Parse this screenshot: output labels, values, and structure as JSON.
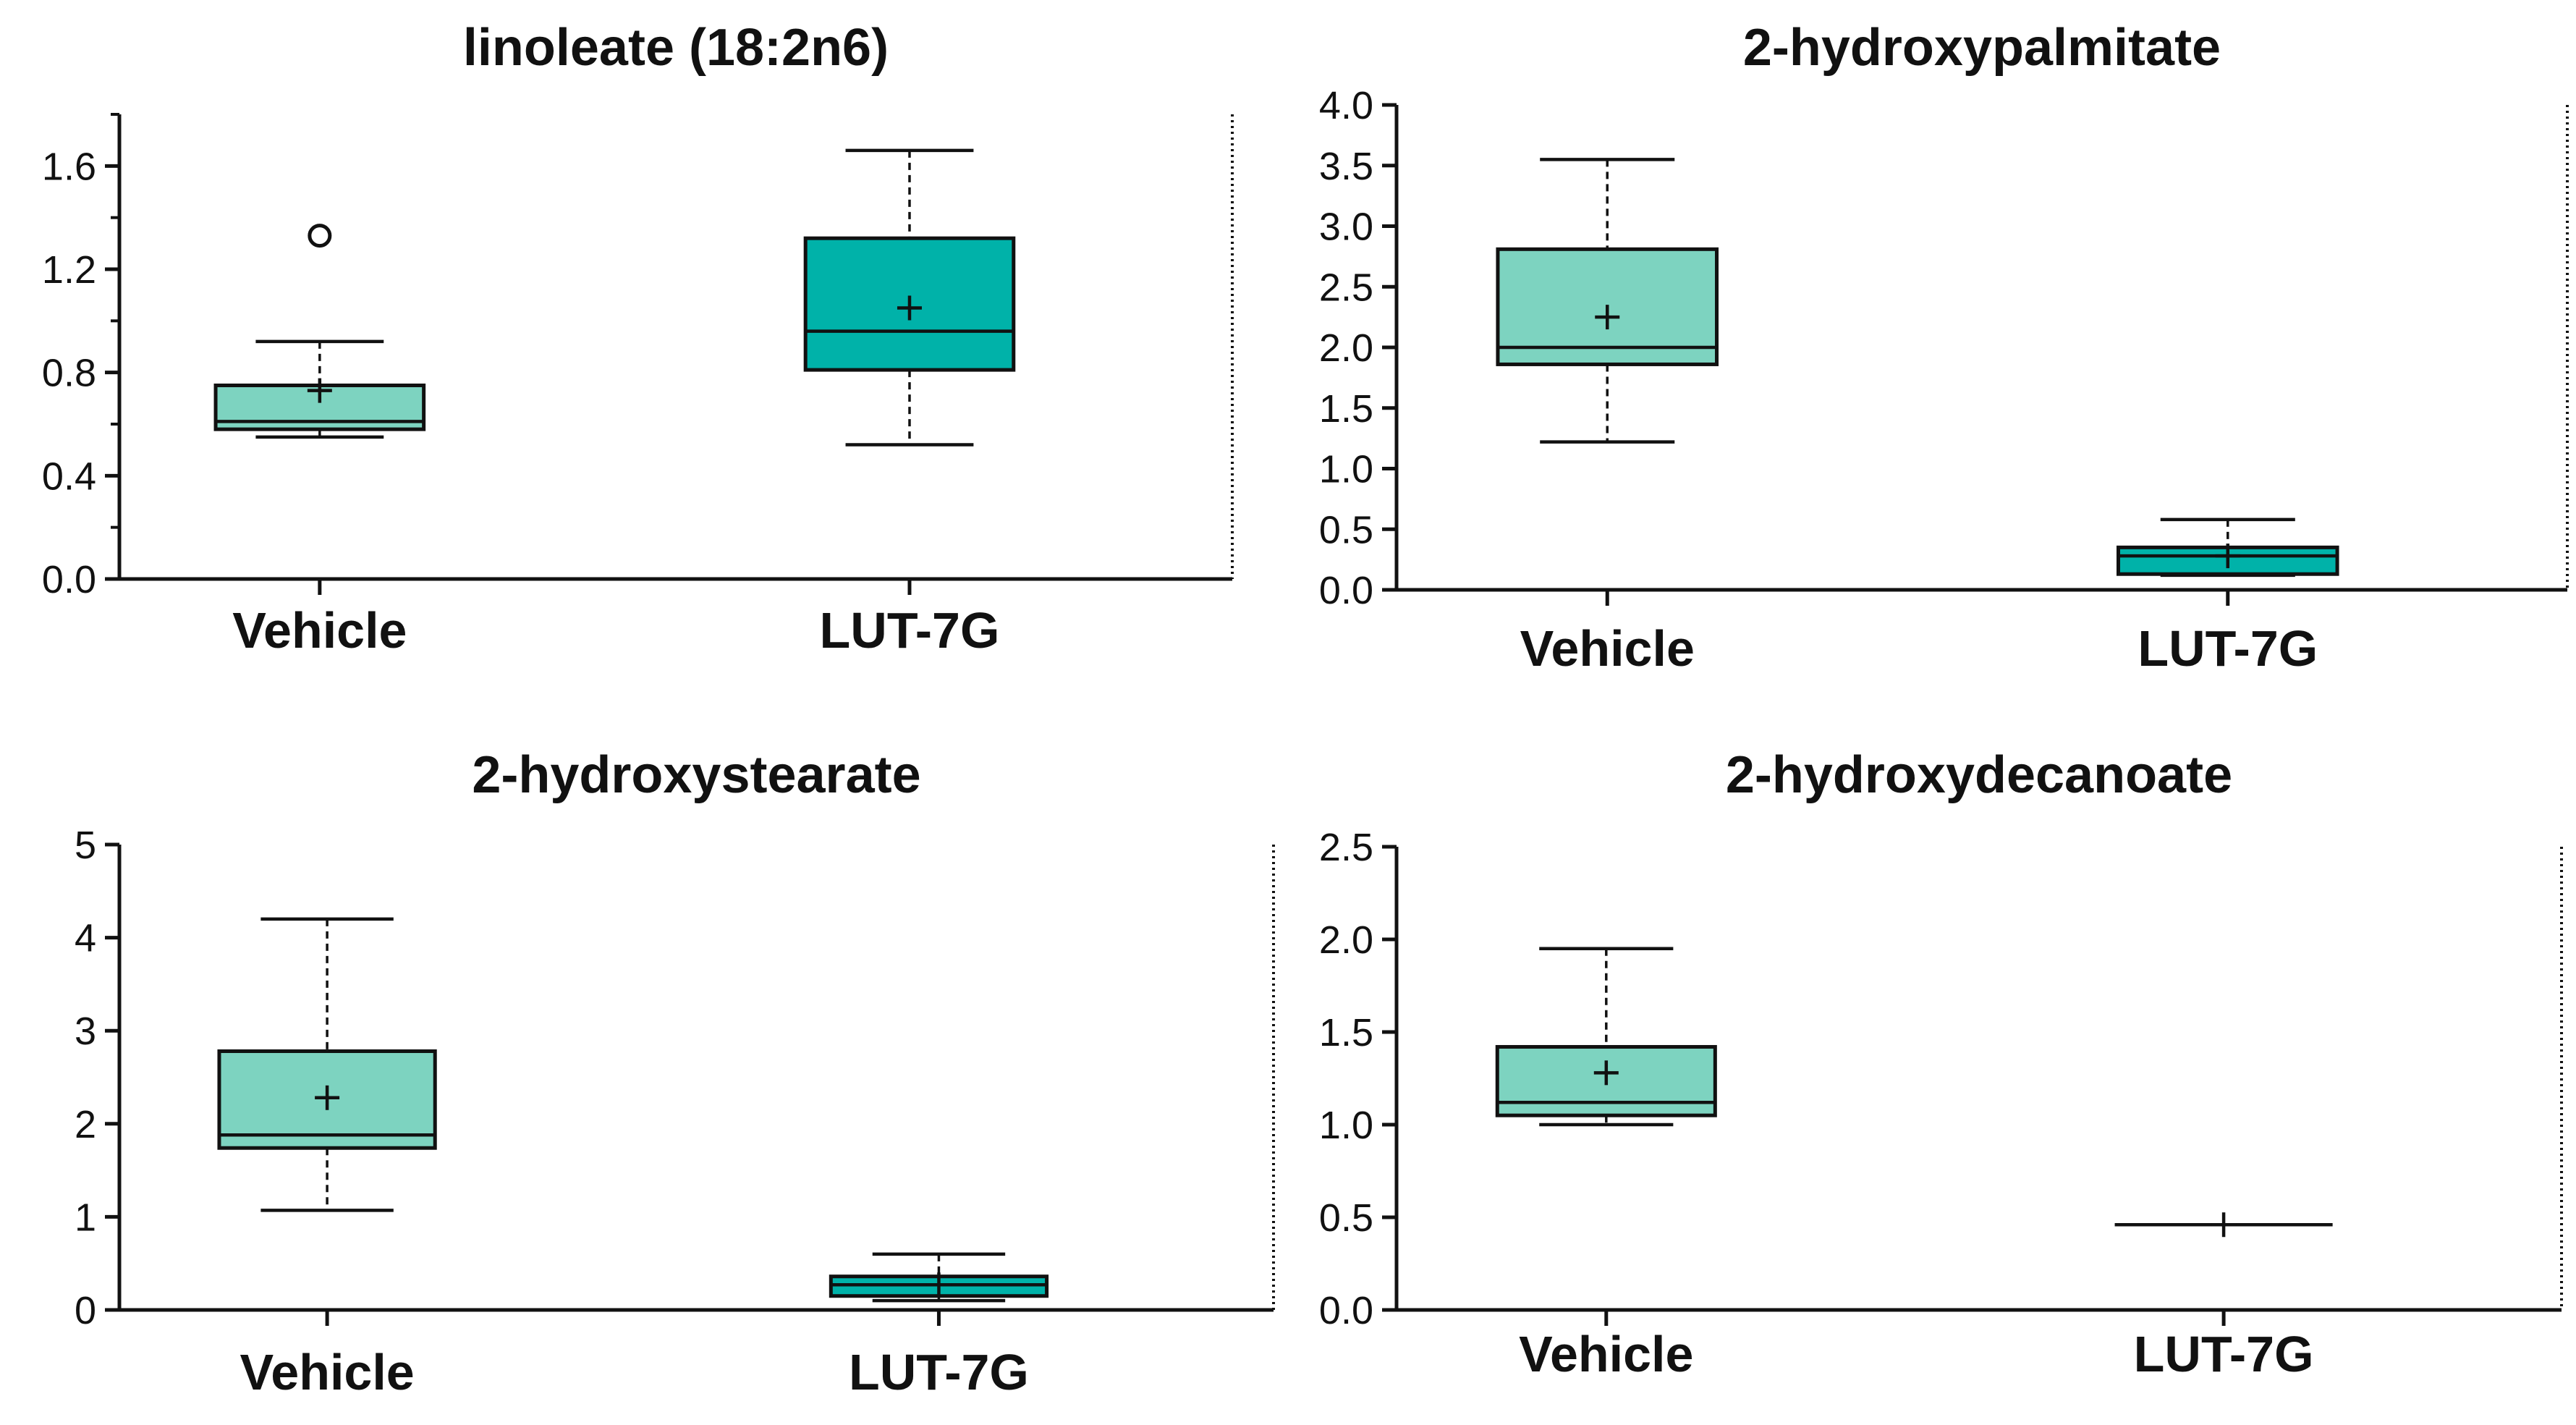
{
  "colors": {
    "vehicle_box": "#7DD3C0",
    "lut7g_box": "#00B2A9",
    "stroke": "#111111"
  },
  "chart_data": [
    {
      "type": "box",
      "title": "linoleate (18:2n6)",
      "categories": [
        "Vehicle",
        "LUT-7G"
      ],
      "ylim": [
        0,
        1.8
      ],
      "yticks": [
        "0.0",
        "0.4",
        "0.8",
        "1.2",
        "1.6"
      ],
      "ytick_values": [
        0,
        0.4,
        0.8,
        1.2,
        1.6
      ],
      "minor_step": 0.2,
      "boxes": [
        {
          "name": "Vehicle",
          "min": 0.55,
          "q1": 0.58,
          "median": 0.61,
          "q3": 0.75,
          "max": 0.92,
          "mean": 0.73,
          "outliers": [
            1.33
          ]
        },
        {
          "name": "LUT-7G",
          "min": 0.52,
          "q1": 0.81,
          "median": 0.96,
          "q3": 1.32,
          "max": 1.66,
          "mean": 1.05,
          "outliers": []
        }
      ]
    },
    {
      "type": "box",
      "title": "2-hydroxypalmitate",
      "categories": [
        "Vehicle",
        "LUT-7G"
      ],
      "ylim": [
        0,
        4.0
      ],
      "yticks": [
        "0.0",
        "0.5",
        "1.0",
        "1.5",
        "2.0",
        "2.5",
        "3.0",
        "3.5",
        "4.0"
      ],
      "ytick_values": [
        0,
        0.5,
        1.0,
        1.5,
        2.0,
        2.5,
        3.0,
        3.5,
        4.0
      ],
      "minor_step": null,
      "boxes": [
        {
          "name": "Vehicle",
          "min": 1.22,
          "q1": 1.86,
          "median": 2.0,
          "q3": 2.81,
          "max": 3.55,
          "mean": 2.25,
          "outliers": []
        },
        {
          "name": "LUT-7G",
          "min": 0.12,
          "q1": 0.13,
          "median": 0.28,
          "q3": 0.35,
          "max": 0.58,
          "mean": 0.28,
          "outliers": []
        }
      ]
    },
    {
      "type": "box",
      "title": "2-hydroxystearate",
      "categories": [
        "Vehicle",
        "LUT-7G"
      ],
      "ylim": [
        0,
        5
      ],
      "yticks": [
        "0",
        "1",
        "2",
        "3",
        "4",
        "5"
      ],
      "ytick_values": [
        0,
        1,
        2,
        3,
        4,
        5
      ],
      "minor_step": null,
      "boxes": [
        {
          "name": "Vehicle",
          "min": 1.07,
          "q1": 1.74,
          "median": 1.88,
          "q3": 2.78,
          "max": 4.2,
          "mean": 2.28,
          "outliers": []
        },
        {
          "name": "LUT-7G",
          "min": 0.1,
          "q1": 0.15,
          "median": 0.27,
          "q3": 0.36,
          "max": 0.6,
          "mean": 0.27,
          "outliers": []
        }
      ]
    },
    {
      "type": "box",
      "title": "2-hydroxydecanoate",
      "categories": [
        "Vehicle",
        "LUT-7G"
      ],
      "ylim": [
        0,
        2.5
      ],
      "yticks": [
        "0.0",
        "0.5",
        "1.0",
        "1.5",
        "2.0",
        "2.5"
      ],
      "ytick_values": [
        0,
        0.5,
        1.0,
        1.5,
        2.0,
        2.5
      ],
      "minor_step": null,
      "boxes": [
        {
          "name": "Vehicle",
          "min": 1.0,
          "q1": 1.05,
          "median": 1.12,
          "q3": 1.42,
          "max": 1.95,
          "mean": 1.28,
          "outliers": []
        },
        {
          "name": "LUT-7G",
          "min": 0.46,
          "q1": 0.46,
          "median": 0.46,
          "q3": 0.46,
          "max": 0.46,
          "mean": 0.46,
          "outliers": []
        }
      ]
    }
  ]
}
